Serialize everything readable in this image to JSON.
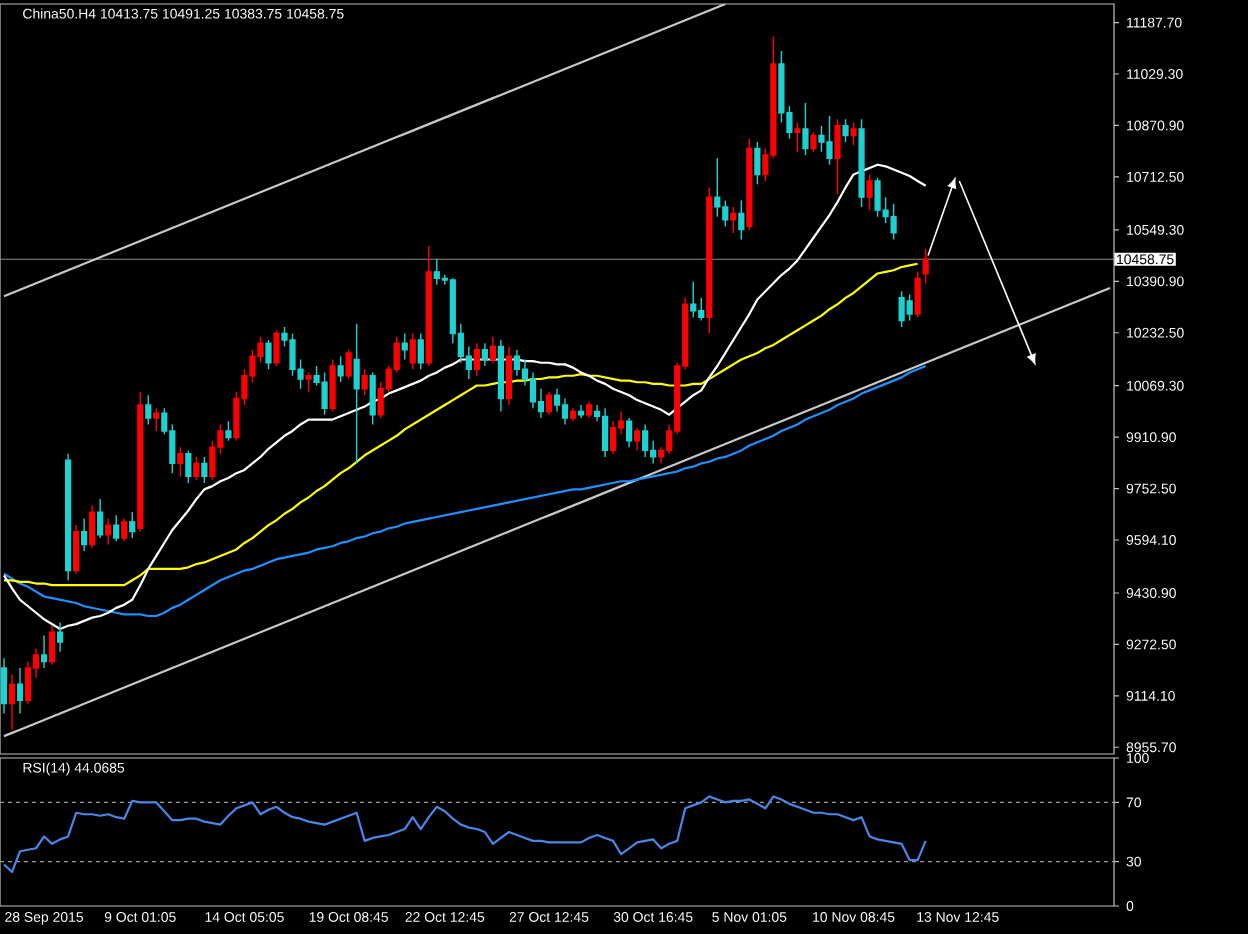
{
  "chart_data": [
    {
      "type": "candlestick",
      "title": "China50.H4 10413.75 10491.25 10383.75 10458.75",
      "ylim": [
        8935,
        11245
      ],
      "categories": [
        null,
        null,
        null,
        null,
        null,
        null,
        null,
        null,
        null,
        null,
        null,
        null,
        null,
        null,
        null,
        null,
        null,
        null,
        null,
        null,
        null,
        null,
        null,
        null,
        null,
        null,
        null,
        null,
        null,
        null,
        null,
        null,
        null,
        null,
        null,
        null,
        null,
        null,
        null,
        null,
        null,
        null,
        null,
        null,
        null,
        null,
        null,
        null,
        null,
        null,
        null,
        null,
        null,
        null,
        null,
        null,
        null,
        null,
        null,
        null,
        null,
        null,
        null,
        null,
        null,
        null,
        null,
        null,
        null,
        null,
        null,
        null,
        null,
        null,
        null,
        null,
        null,
        null,
        null,
        null,
        null,
        null,
        null,
        null,
        null,
        null,
        null,
        null,
        null,
        null,
        null,
        null,
        null,
        null,
        null,
        null,
        null,
        null,
        null,
        null,
        null,
        null,
        null,
        null,
        null,
        null,
        null,
        null,
        null,
        null,
        null,
        null,
        null,
        null,
        null,
        null,
        null,
        null,
        null,
        null,
        null,
        null,
        null,
        null,
        null,
        null,
        null,
        null,
        null,
        null,
        null,
        null,
        null,
        null,
        null,
        null,
        null,
        null,
        null
      ],
      "yticks": [
        {
          "value": 11187.7,
          "label": "11187.70"
        },
        {
          "value": 11029.3,
          "label": "11029.30"
        },
        {
          "value": 10870.9,
          "label": "10870.90"
        },
        {
          "value": 10712.5,
          "label": "10712.50"
        },
        {
          "value": 10549.3,
          "label": "10549.30"
        },
        {
          "value": 10390.9,
          "label": "10390.90"
        },
        {
          "value": 10232.5,
          "label": "10232.50"
        },
        {
          "value": 10069.3,
          "label": "10069.30"
        },
        {
          "value": 9910.9,
          "label": "9910.90"
        },
        {
          "value": 9752.5,
          "label": "9752.50"
        },
        {
          "value": 9594.1,
          "label": "9594.10"
        },
        {
          "value": 9430.9,
          "label": "9430.90"
        },
        {
          "value": 9272.5,
          "label": "9272.50"
        },
        {
          "value": 9114.1,
          "label": "9114.10"
        },
        {
          "value": 8955.7,
          "label": "8955.70"
        }
      ],
      "tick_labels": "y",
      "ref_lines": [
        {
          "axis": "y",
          "value": 10458.75,
          "label": "10458.75",
          "color": "#8a8a8a"
        }
      ],
      "series": [
        {
          "type": "line",
          "color": "#c8c8c8",
          "values": [
            10345,
            10355,
            10365,
            10375,
            10385,
            10395,
            10405,
            10415,
            10425,
            10435,
            10445,
            10455,
            10465,
            10475,
            10485,
            10495,
            10505,
            10515,
            10525,
            10535,
            10545,
            10555,
            10565,
            10575,
            10585,
            10595,
            10605,
            10615,
            10625,
            10635,
            10645,
            10655,
            10665,
            10675,
            10685,
            10695,
            10705,
            10715,
            10725,
            10735,
            10745,
            10755,
            10765,
            10775,
            10785,
            10795,
            10805,
            10815,
            10825,
            10835,
            10845,
            10855,
            10865,
            10875,
            10885,
            10895,
            10905,
            10915,
            10925,
            10935,
            10945,
            10955,
            10965,
            10975,
            10985,
            10995,
            11005,
            11015,
            11025,
            11035,
            11045,
            11055,
            11065,
            11075,
            11085,
            11095,
            11105,
            11115,
            11125,
            11135,
            11145,
            11155,
            11165,
            11175,
            11185,
            11195,
            11205,
            11215,
            11225,
            11235,
            11245,
            null,
            null,
            null,
            null,
            null,
            null,
            null,
            null,
            null,
            null,
            null,
            null,
            null,
            null,
            null,
            null,
            null,
            null,
            null,
            null,
            null,
            null,
            null,
            null,
            null,
            null,
            null,
            null,
            null,
            null,
            null,
            null,
            null,
            null,
            null,
            null,
            null,
            null,
            null,
            null,
            null,
            null,
            null,
            null,
            null,
            null,
            null,
            null
          ]
        },
        {
          "type": "line",
          "color": "#c8c8c8",
          "values": [
            8990,
            9000,
            9010,
            9020,
            9030,
            9040,
            9050,
            9060,
            9070,
            9080,
            9090,
            9100,
            9110,
            9120,
            9130,
            9140,
            9150,
            9160,
            9170,
            9180,
            9190,
            9200,
            9210,
            9220,
            9230,
            9240,
            9250,
            9260,
            9270,
            9280,
            9290,
            9300,
            9310,
            9320,
            9330,
            9340,
            9350,
            9360,
            9370,
            9380,
            9390,
            9400,
            9410,
            9420,
            9430,
            9440,
            9450,
            9460,
            9470,
            9480,
            9490,
            9500,
            9510,
            9520,
            9530,
            9540,
            9550,
            9560,
            9570,
            9580,
            9590,
            9600,
            9610,
            9620,
            9630,
            9640,
            9650,
            9660,
            9670,
            9680,
            9690,
            9700,
            9710,
            9720,
            9730,
            9740,
            9750,
            9760,
            9770,
            9780,
            9790,
            9800,
            9810,
            9820,
            9830,
            9840,
            9850,
            9860,
            9870,
            9880,
            9890,
            9900,
            9910,
            9920,
            9930,
            9940,
            9950,
            9960,
            9970,
            9980,
            9990,
            10000,
            10010,
            10020,
            10030,
            10040,
            10050,
            10060,
            10070,
            10080,
            10090,
            10100,
            10110,
            10120,
            10130,
            10140,
            10150,
            10160,
            10170,
            10180,
            10190,
            10200,
            10210,
            10220,
            10230,
            10240,
            10250,
            10260,
            10270,
            10280,
            10290,
            10300,
            10310,
            10320,
            10330,
            10340,
            10350,
            10360,
            10370
          ]
        },
        {
          "type": "line",
          "color": "#1e90ff",
          "values": [
            9490,
            9475,
            9460,
            9450,
            9435,
            9420,
            9415,
            9410,
            9405,
            9400,
            9390,
            9385,
            9380,
            9375,
            9370,
            9365,
            9365,
            9365,
            9360,
            9360,
            9370,
            9385,
            9395,
            9410,
            9425,
            9440,
            9455,
            9470,
            9480,
            9490,
            9500,
            9505,
            9515,
            9525,
            9535,
            9540,
            9545,
            9550,
            9555,
            9565,
            9570,
            9575,
            9585,
            9590,
            9600,
            9605,
            9615,
            9620,
            9630,
            9635,
            9645,
            9650,
            9655,
            9660,
            9665,
            9670,
            9675,
            9680,
            9685,
            9690,
            9695,
            9700,
            9705,
            9710,
            9715,
            9720,
            9725,
            9730,
            9735,
            9740,
            9745,
            9750,
            9750,
            9755,
            9760,
            9765,
            9770,
            9775,
            9775,
            9780,
            9785,
            9790,
            9795,
            9800,
            9805,
            9815,
            9820,
            9830,
            9835,
            9845,
            9850,
            9860,
            9870,
            9885,
            9895,
            9905,
            9915,
            9930,
            9940,
            9950,
            9965,
            9975,
            9985,
            9995,
            10010,
            10020,
            10030,
            10045,
            10055,
            10065,
            10075,
            10085,
            10095,
            10110,
            10120,
            10130,
            null,
            null,
            null,
            null,
            null,
            null,
            null,
            null,
            null,
            null,
            null,
            null,
            null,
            null,
            null,
            null,
            null,
            null,
            null,
            null,
            null,
            null,
            null
          ]
        },
        {
          "type": "line",
          "color": "#ffff00",
          "values": [
            9470,
            9470,
            9465,
            9465,
            9460,
            9460,
            9455,
            9455,
            9455,
            9455,
            9455,
            9455,
            9455,
            9455,
            9455,
            9455,
            9470,
            9485,
            9505,
            9505,
            9505,
            9505,
            9505,
            9510,
            9520,
            9525,
            9535,
            9545,
            9555,
            9565,
            9585,
            9600,
            9620,
            9640,
            9655,
            9675,
            9690,
            9710,
            9725,
            9745,
            9760,
            9780,
            9800,
            9815,
            9835,
            9855,
            9870,
            9885,
            9900,
            9915,
            9935,
            9950,
            9965,
            9980,
            9995,
            10010,
            10025,
            10040,
            10055,
            10070,
            10070,
            10075,
            10080,
            10080,
            10085,
            10085,
            10090,
            10090,
            10095,
            10095,
            10100,
            10100,
            10105,
            10100,
            10100,
            10095,
            10090,
            10085,
            10085,
            10080,
            10080,
            10075,
            10075,
            10070,
            10070,
            10070,
            10075,
            10075,
            10090,
            10105,
            10120,
            10135,
            10150,
            10160,
            10170,
            10185,
            10195,
            10210,
            10225,
            10240,
            10255,
            10270,
            10285,
            10305,
            10320,
            10340,
            10355,
            10375,
            10395,
            10415,
            10420,
            10425,
            10435,
            10440,
            10445,
            null,
            null,
            null,
            null,
            null,
            null,
            null,
            null,
            null,
            null,
            null,
            null,
            null,
            null,
            null,
            null,
            null,
            null,
            null,
            null,
            null,
            null,
            null,
            null
          ]
        },
        {
          "type": "line",
          "color": "#ffffff",
          "values": [
            9485,
            9445,
            9410,
            9390,
            9370,
            9350,
            9335,
            9320,
            9330,
            9335,
            9345,
            9355,
            9360,
            9370,
            9385,
            9395,
            9410,
            9455,
            9505,
            9545,
            9585,
            9625,
            9655,
            9685,
            9720,
            9750,
            9760,
            9775,
            9785,
            9800,
            9810,
            9830,
            9850,
            9875,
            9895,
            9915,
            9930,
            9950,
            9965,
            9965,
            9965,
            9965,
            9975,
            9985,
            9995,
            10005,
            10020,
            10030,
            10045,
            10055,
            10065,
            10075,
            10085,
            10100,
            10110,
            10125,
            10135,
            10150,
            10150,
            10150,
            10150,
            10150,
            10150,
            10150,
            10150,
            10145,
            10145,
            10140,
            10140,
            10135,
            10135,
            10125,
            10110,
            10100,
            10085,
            10075,
            10060,
            10050,
            10040,
            10025,
            10015,
            10005,
            9995,
            9980,
            10000,
            10020,
            10040,
            10055,
            10095,
            10130,
            10170,
            10210,
            10250,
            10290,
            10335,
            10360,
            10385,
            10410,
            10430,
            10455,
            10490,
            10525,
            10560,
            10595,
            10635,
            10680,
            10720,
            10730,
            10740,
            10750,
            10745,
            10735,
            10725,
            10715,
            10700,
            10685,
            null,
            null,
            null,
            null,
            null,
            null,
            null,
            null,
            null,
            null,
            null,
            null,
            null,
            null,
            null,
            null,
            null,
            null,
            null,
            null,
            null,
            null,
            null
          ]
        },
        {
          "type": "candlestick",
          "ohlc": [
            [
              9200,
              9230,
              9060,
              9090
            ],
            [
              9090,
              9180,
              9010,
              9150
            ],
            [
              9150,
              9200,
              9060,
              9100
            ],
            [
              9100,
              9220,
              9090,
              9200
            ],
            [
              9200,
              9260,
              9170,
              9240
            ],
            [
              9240,
              9300,
              9200,
              9220
            ],
            [
              9220,
              9330,
              9210,
              9310
            ],
            [
              9310,
              9340,
              9250,
              9280
            ],
            [
              9840,
              9860,
              9470,
              9500
            ],
            [
              9500,
              9640,
              9490,
              9620
            ],
            [
              9620,
              9660,
              9560,
              9580
            ],
            [
              9580,
              9700,
              9570,
              9680
            ],
            [
              9680,
              9720,
              9600,
              9610
            ],
            [
              9610,
              9660,
              9580,
              9640
            ],
            [
              9640,
              9670,
              9590,
              9600
            ],
            [
              9600,
              9660,
              9590,
              9650
            ],
            [
              9650,
              9680,
              9600,
              9620
            ],
            [
              9630,
              10050,
              9620,
              10010
            ],
            [
              10010,
              10040,
              9950,
              9970
            ],
            [
              9970,
              10000,
              9930,
              9985
            ],
            [
              9985,
              10000,
              9920,
              9930
            ],
            [
              9930,
              9950,
              9800,
              9830
            ],
            [
              9830,
              9880,
              9790,
              9860
            ],
            [
              9860,
              9870,
              9770,
              9790
            ],
            [
              9790,
              9850,
              9780,
              9830
            ],
            [
              9830,
              9850,
              9770,
              9790
            ],
            [
              9790,
              9900,
              9780,
              9880
            ],
            [
              9880,
              9950,
              9860,
              9930
            ],
            [
              9930,
              9960,
              9900,
              9910
            ],
            [
              9910,
              10050,
              9900,
              10030
            ],
            [
              10030,
              10120,
              10010,
              10100
            ],
            [
              10100,
              10180,
              10080,
              10160
            ],
            [
              10160,
              10220,
              10140,
              10200
            ],
            [
              10200,
              10210,
              10120,
              10140
            ],
            [
              10140,
              10240,
              10130,
              10230
            ],
            [
              10230,
              10250,
              10190,
              10210
            ],
            [
              10210,
              10230,
              10100,
              10120
            ],
            [
              10120,
              10150,
              10060,
              10090
            ],
            [
              10090,
              10110,
              10050,
              10100
            ],
            [
              10100,
              10130,
              10070,
              10080
            ],
            [
              10080,
              10110,
              9980,
              10000
            ],
            [
              10000,
              10150,
              9990,
              10130
            ],
            [
              10130,
              10160,
              10080,
              10100
            ],
            [
              10100,
              10180,
              10090,
              10170
            ],
            [
              10150,
              10260,
              9830,
              10060
            ],
            [
              10060,
              10120,
              10040,
              10100
            ],
            [
              10100,
              10110,
              9950,
              9980
            ],
            [
              9980,
              10080,
              9970,
              10060
            ],
            [
              10060,
              10130,
              10050,
              10120
            ],
            [
              10120,
              10220,
              10110,
              10200
            ],
            [
              10200,
              10230,
              10150,
              10180
            ],
            [
              10140,
              10230,
              10120,
              10210
            ],
            [
              10210,
              10230,
              10120,
              10140
            ],
            [
              10140,
              10500,
              10130,
              10420
            ],
            [
              10420,
              10460,
              10380,
              10400
            ],
            [
              10400,
              10410,
              10380,
              10395
            ],
            [
              10395,
              10400,
              10200,
              10230
            ],
            [
              10230,
              10260,
              10140,
              10160
            ],
            [
              10160,
              10190,
              10090,
              10120
            ],
            [
              10120,
              10200,
              10100,
              10180
            ],
            [
              10180,
              10200,
              10130,
              10150
            ],
            [
              10150,
              10220,
              10140,
              10190
            ],
            [
              10190,
              10210,
              9990,
              10030
            ],
            [
              10030,
              10190,
              10010,
              10160
            ],
            [
              10160,
              10180,
              10100,
              10120
            ],
            [
              10120,
              10150,
              10070,
              10090
            ],
            [
              10090,
              10110,
              10000,
              10020
            ],
            [
              10020,
              10060,
              9970,
              9990
            ],
            [
              9990,
              10050,
              9980,
              10040
            ],
            [
              10040,
              10060,
              9990,
              10010
            ],
            [
              10010,
              10030,
              9950,
              9970
            ],
            [
              9970,
              10000,
              9960,
              9990
            ],
            [
              9990,
              10010,
              9970,
              9980
            ],
            [
              9980,
              10020,
              9970,
              10010
            ],
            [
              9990,
              10010,
              9960,
              9975
            ],
            [
              9975,
              10000,
              9850,
              9870
            ],
            [
              9870,
              9960,
              9860,
              9940
            ],
            [
              9940,
              9990,
              9920,
              9960
            ],
            [
              9960,
              9970,
              9880,
              9900
            ],
            [
              9900,
              9940,
              9870,
              9930
            ],
            [
              9930,
              9950,
              9850,
              9870
            ],
            [
              9870,
              9900,
              9830,
              9850
            ],
            [
              9850,
              9880,
              9830,
              9870
            ],
            [
              9870,
              9950,
              9860,
              9930
            ],
            [
              9930,
              10140,
              9920,
              10130
            ],
            [
              10130,
              10340,
              10120,
              10320
            ],
            [
              10320,
              10390,
              10280,
              10300
            ],
            [
              10300,
              10340,
              10270,
              10280
            ],
            [
              10280,
              10680,
              10230,
              10650
            ],
            [
              10650,
              10770,
              10590,
              10620
            ],
            [
              10620,
              10640,
              10560,
              10580
            ],
            [
              10580,
              10620,
              10540,
              10600
            ],
            [
              10600,
              10640,
              10520,
              10550
            ],
            [
              10560,
              10830,
              10550,
              10800
            ],
            [
              10800,
              10820,
              10690,
              10720
            ],
            [
              10720,
              10800,
              10700,
              10780
            ],
            [
              10780,
              11145,
              10770,
              11060
            ],
            [
              11060,
              11100,
              10880,
              10910
            ],
            [
              10910,
              10930,
              10830,
              10850
            ],
            [
              10850,
              10880,
              10790,
              10860
            ],
            [
              10860,
              10940,
              10780,
              10800
            ],
            [
              10800,
              10850,
              10790,
              10840
            ],
            [
              10840,
              10870,
              10790,
              10820
            ],
            [
              10820,
              10900,
              10750,
              10770
            ],
            [
              10770,
              10890,
              10660,
              10870
            ],
            [
              10870,
              10890,
              10820,
              10840
            ],
            [
              10840,
              10880,
              10810,
              10860
            ],
            [
              10860,
              10890,
              10620,
              10650
            ],
            [
              10650,
              10720,
              10610,
              10700
            ],
            [
              10700,
              10710,
              10590,
              10610
            ],
            [
              10610,
              10650,
              10570,
              10590
            ],
            [
              10590,
              10630,
              10520,
              10540
            ],
            [
              10340,
              10360,
              10250,
              10270
            ],
            [
              10330,
              10350,
              10270,
              10290
            ],
            [
              10290,
              10420,
              10280,
              10400
            ],
            [
              10413.75,
              10491.25,
              10383.75,
              10458.75
            ],
            null,
            null,
            null,
            null,
            null,
            null,
            null,
            null,
            null,
            null,
            null,
            null,
            null,
            null,
            null,
            null,
            null,
            null,
            null,
            null,
            null,
            null,
            null
          ],
          "colors": [
            "#1fd1d1",
            "#ff0000",
            "#1fd1d1",
            "#ff0000",
            "#ff0000",
            "#1fd1d1",
            "#ff0000",
            "#1fd1d1",
            "#1fd1d1",
            "#ff0000",
            "#1fd1d1",
            "#ff0000",
            "#1fd1d1",
            "#ff0000",
            "#1fd1d1",
            "#ff0000",
            "#1fd1d1",
            "#ff0000",
            "#1fd1d1",
            "#ff0000",
            "#1fd1d1",
            "#1fd1d1",
            "#ff0000",
            "#1fd1d1",
            "#ff0000",
            "#1fd1d1",
            "#ff0000",
            "#ff0000",
            "#1fd1d1",
            "#ff0000",
            "#ff0000",
            "#ff0000",
            "#ff0000",
            "#1fd1d1",
            "#ff0000",
            "#1fd1d1",
            "#1fd1d1",
            "#1fd1d1",
            "#ff0000",
            "#1fd1d1",
            "#1fd1d1",
            "#ff0000",
            "#1fd1d1",
            "#ff0000",
            "#1fd1d1",
            "#ff0000",
            "#1fd1d1",
            "#ff0000",
            "#ff0000",
            "#ff0000",
            "#1fd1d1",
            "#ff0000",
            "#1fd1d1",
            "#ff0000",
            "#1fd1d1",
            "#1fd1d1",
            "#1fd1d1",
            "#1fd1d1",
            "#1fd1d1",
            "#ff0000",
            "#1fd1d1",
            "#ff0000",
            "#1fd1d1",
            "#ff0000",
            "#1fd1d1",
            "#1fd1d1",
            "#1fd1d1",
            "#1fd1d1",
            "#ff0000",
            "#1fd1d1",
            "#1fd1d1",
            "#ff0000",
            "#1fd1d1",
            "#ff0000",
            "#1fd1d1",
            "#1fd1d1",
            "#ff0000",
            "#ff0000",
            "#1fd1d1",
            "#ff0000",
            "#1fd1d1",
            "#1fd1d1",
            "#ff0000",
            "#ff0000",
            "#ff0000",
            "#ff0000",
            "#1fd1d1",
            "#1fd1d1",
            "#ff0000",
            "#1fd1d1",
            "#1fd1d1",
            "#ff0000",
            "#1fd1d1",
            "#ff0000",
            "#1fd1d1",
            "#ff0000",
            "#ff0000",
            "#1fd1d1",
            "#1fd1d1",
            "#ff0000",
            "#1fd1d1",
            "#ff0000",
            "#1fd1d1",
            "#1fd1d1",
            "#ff0000",
            "#1fd1d1",
            "#ff0000",
            "#1fd1d1",
            "#ff0000",
            "#1fd1d1",
            "#1fd1d1",
            "#1fd1d1",
            "#1fd1d1",
            "#1fd1d1",
            "#ff0000",
            "#ff0000",
            null,
            null,
            null,
            null,
            null,
            null,
            null,
            null,
            null,
            null,
            null,
            null,
            null,
            null,
            null,
            null,
            null,
            null,
            null,
            null,
            null,
            null,
            null
          ]
        }
      ]
    },
    {
      "type": "line",
      "title": "RSI(14) 44.0685",
      "ylim": [
        0,
        100
      ],
      "categories": [
        null,
        null,
        null,
        null,
        null,
        "28 Sep 2015",
        null,
        null,
        null,
        null,
        null,
        null,
        null,
        null,
        null,
        null,
        null,
        "9 Oct 01:05",
        null,
        null,
        null,
        null,
        null,
        null,
        null,
        null,
        null,
        null,
        null,
        null,
        "14 Oct 05:05",
        null,
        null,
        null,
        null,
        null,
        null,
        null,
        null,
        null,
        null,
        null,
        null,
        "19 Oct 08:45",
        null,
        null,
        null,
        null,
        null,
        null,
        null,
        null,
        null,
        null,
        null,
        "22 Oct 12:45",
        null,
        null,
        null,
        null,
        null,
        null,
        null,
        null,
        null,
        null,
        null,
        null,
        "27 Oct 12:45",
        null,
        null,
        null,
        null,
        null,
        null,
        null,
        null,
        null,
        null,
        null,
        null,
        "30 Oct 16:45",
        null,
        null,
        null,
        null,
        null,
        null,
        null,
        null,
        null,
        null,
        null,
        "5 Nov 01:05",
        null,
        null,
        null,
        null,
        null,
        null,
        null,
        null,
        null,
        null,
        null,
        null,
        "10 Nov 08:45",
        null,
        null,
        null,
        null,
        null,
        null,
        null,
        null,
        null,
        null,
        null,
        null,
        "13 Nov 12:45",
        null,
        null,
        null,
        null,
        null,
        null,
        null,
        null,
        null,
        null,
        null,
        null,
        null,
        null,
        null,
        null,
        null,
        null,
        null
      ],
      "yticks": [
        0,
        30,
        70,
        100
      ],
      "ref_lines": [
        {
          "axis": "y",
          "value": 30,
          "color": "#9a9a9a",
          "line_style": "dashed"
        },
        {
          "axis": "y",
          "value": 70,
          "color": "#9a9a9a",
          "line_style": "dashed"
        }
      ],
      "series": [
        {
          "color": "#4a86e8",
          "values": [
            28,
            23,
            37,
            38,
            39,
            47,
            42,
            45,
            47,
            63,
            62,
            62,
            61,
            62,
            60,
            59,
            71,
            70,
            70,
            70,
            64,
            58,
            58,
            59,
            59,
            57,
            56,
            55,
            61,
            66,
            68,
            70,
            62,
            65,
            67,
            63,
            60,
            59,
            57,
            56,
            55,
            57,
            59,
            61,
            63,
            44,
            46,
            47,
            48,
            50,
            52,
            60,
            52,
            60,
            67,
            64,
            59,
            55,
            53,
            52,
            50,
            42,
            46,
            50,
            48,
            46,
            44,
            44,
            43,
            43,
            43,
            43,
            43,
            46,
            48,
            46,
            44,
            35,
            39,
            43,
            44,
            45,
            39,
            42,
            44,
            66,
            68,
            70,
            74,
            72,
            70,
            71,
            71,
            72,
            69,
            66,
            74,
            72,
            69,
            67,
            65,
            63,
            63,
            62,
            62,
            60,
            58,
            60,
            47,
            45,
            44,
            43,
            42,
            31,
            31,
            44,
            null,
            null,
            null,
            null,
            null,
            null,
            null,
            null,
            null,
            null,
            null,
            null,
            null,
            null,
            null,
            null,
            null,
            null,
            null,
            null,
            null,
            null,
            null
          ]
        }
      ]
    }
  ]
}
